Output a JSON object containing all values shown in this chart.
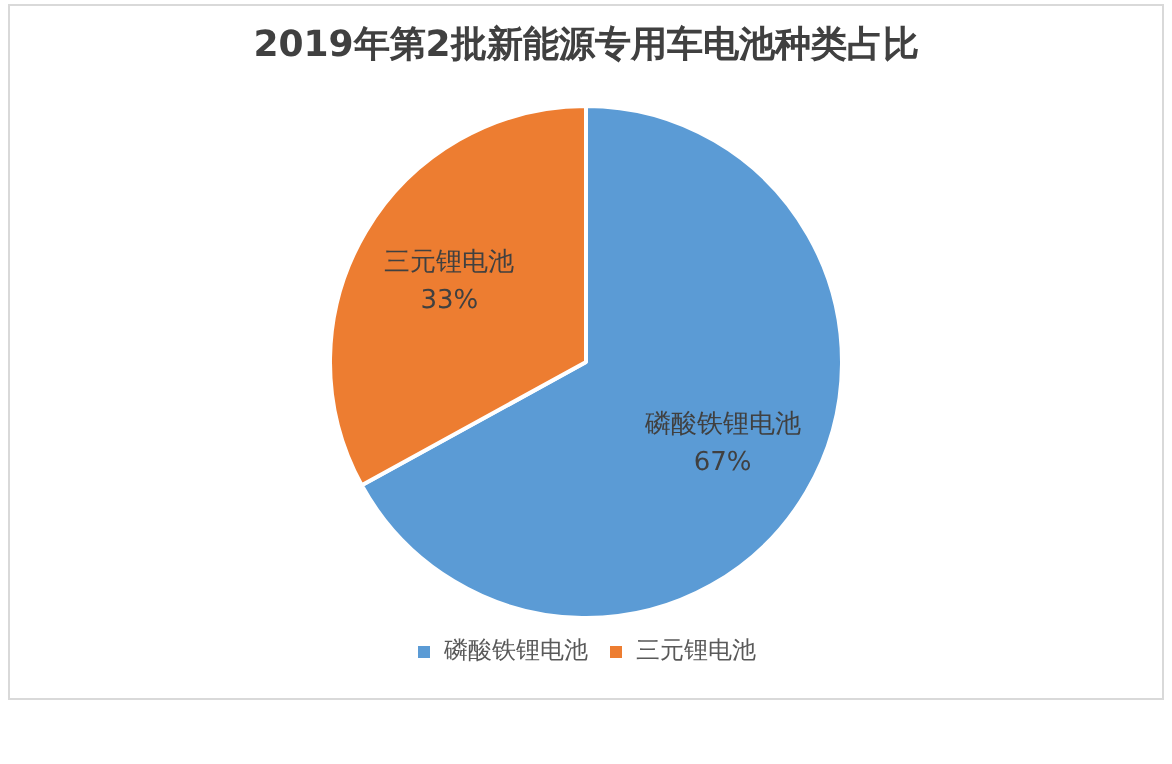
{
  "chart_data": {
    "type": "pie",
    "title": "2019年第2批新能源专用车电池种类占比",
    "categories": [
      "磷酸铁锂电池",
      "三元锂电池"
    ],
    "values": [
      67,
      33
    ],
    "colors": [
      "#5b9bd5",
      "#ed7d31"
    ],
    "value_labels": [
      "67%",
      "33%"
    ],
    "legend": "bottom"
  }
}
